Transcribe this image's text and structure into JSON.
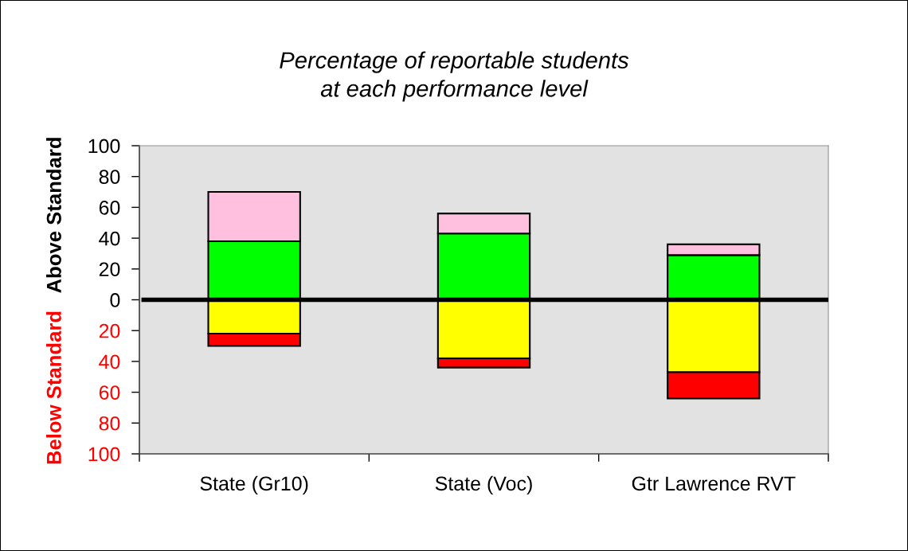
{
  "chart_data": {
    "type": "bar",
    "stacked": true,
    "title": "Percentage of reportable students\nat each performance level",
    "ylabel": "Above Standard",
    "annotations": [
      "Below Standard"
    ],
    "categories": [
      "State (Gr10)",
      "State (Voc)",
      "Gtr Lawrence RVT"
    ],
    "series": [
      {
        "color": "#00ff00",
        "values": [
          38,
          43,
          29
        ]
      },
      {
        "color": "#ffc0e0",
        "values": [
          32,
          13,
          7
        ]
      },
      {
        "color": "#ffff00",
        "values": [
          -22,
          -38,
          -47
        ]
      },
      {
        "color": "#ff0000",
        "values": [
          -8,
          -6,
          -17
        ]
      }
    ],
    "ylim": [
      -100,
      100
    ],
    "yticks": [
      {
        "value": -100,
        "label": "100"
      },
      {
        "value": -80,
        "label": "80"
      },
      {
        "value": -60,
        "label": "60"
      },
      {
        "value": -40,
        "label": "40"
      },
      {
        "value": -20,
        "label": "20"
      },
      0,
      20,
      40,
      60,
      80,
      100
    ],
    "ref_lines": [
      {
        "axis": "y",
        "value": 0,
        "color": "#000000"
      }
    ],
    "grid": false,
    "legend": false
  }
}
